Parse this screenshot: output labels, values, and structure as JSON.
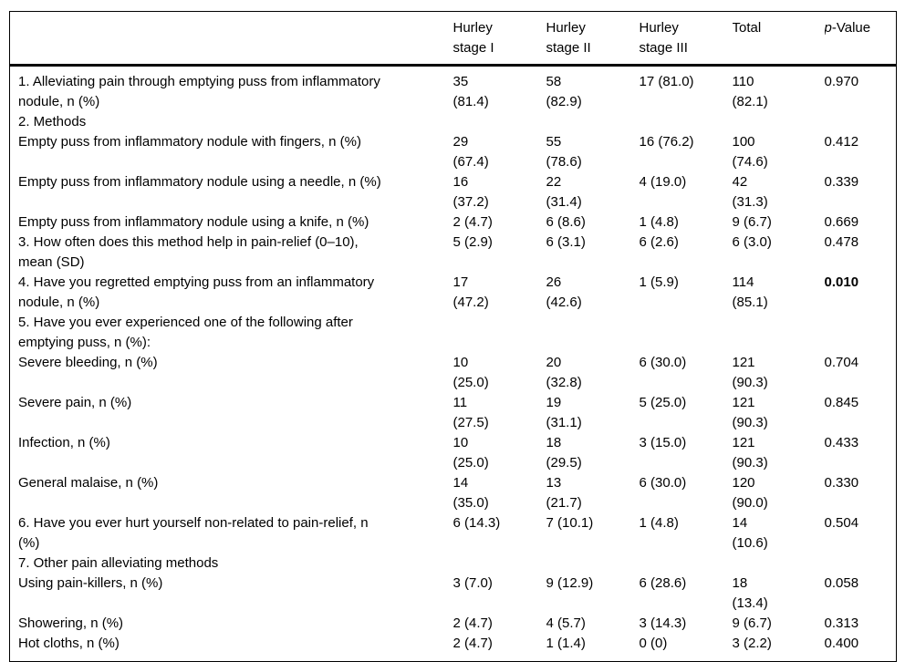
{
  "style": {
    "background_color": "#ffffff",
    "text_color": "#000000",
    "rule_color": "#000000"
  },
  "table": {
    "column_headers": {
      "label": "",
      "stage1": "Hurley\nstage I",
      "stage2": "Hurley\nstage II",
      "stage3": "Hurley\nstage III",
      "total": "Total",
      "p_italic": "p",
      "p_rest": "-Value"
    },
    "rows": [
      {
        "label": "1. Alleviating pain through emptying puss from inflammatory\nnodule, n (%)",
        "cells": [
          "35\n(81.4)",
          "58\n(82.9)",
          "17 (81.0)",
          "110\n(82.1)",
          "0.970"
        ],
        "p_bold": false
      },
      {
        "label": "2. Methods",
        "cells": [
          "",
          "",
          "",
          "",
          ""
        ],
        "p_bold": false
      },
      {
        "label": "Empty puss from inflammatory nodule with fingers, n (%)",
        "cells": [
          "29\n(67.4)",
          "55\n(78.6)",
          "16 (76.2)",
          "100\n(74.6)",
          "0.412"
        ],
        "p_bold": false
      },
      {
        "label": "Empty puss from inflammatory nodule using a needle, n (%)",
        "cells": [
          "16\n(37.2)",
          "22\n(31.4)",
          "4 (19.0)",
          "42\n(31.3)",
          "0.339"
        ],
        "p_bold": false
      },
      {
        "label": "Empty puss from inflammatory nodule using a knife, n (%)",
        "cells": [
          "2 (4.7)",
          "6 (8.6)",
          "1 (4.8)",
          "9 (6.7)",
          "0.669"
        ],
        "p_bold": false
      },
      {
        "label": "3. How often does this method help in pain-relief (0–10),\nmean (SD)",
        "cells": [
          "5 (2.9)",
          "6 (3.1)",
          "6 (2.6)",
          "6 (3.0)",
          "0.478"
        ],
        "p_bold": false
      },
      {
        "label": "4. Have you regretted emptying puss from an inflammatory\nnodule, n (%)",
        "cells": [
          "17\n(47.2)",
          "26\n(42.6)",
          "1 (5.9)",
          "114\n(85.1)",
          "0.010"
        ],
        "p_bold": true
      },
      {
        "label": "5. Have you ever experienced one of the following after\nemptying puss, n (%):",
        "cells": [
          "",
          "",
          "",
          "",
          ""
        ],
        "p_bold": false
      },
      {
        "label": "Severe bleeding, n (%)",
        "cells": [
          "10\n(25.0)",
          "20\n(32.8)",
          "6 (30.0)",
          "121\n(90.3)",
          "0.704"
        ],
        "p_bold": false
      },
      {
        "label": "Severe pain, n (%)",
        "cells": [
          "11\n(27.5)",
          "19\n(31.1)",
          "5 (25.0)",
          "121\n(90.3)",
          "0.845"
        ],
        "p_bold": false
      },
      {
        "label": "Infection, n (%)",
        "cells": [
          "10\n(25.0)",
          "18\n(29.5)",
          "3 (15.0)",
          "121\n(90.3)",
          "0.433"
        ],
        "p_bold": false
      },
      {
        "label": "General malaise, n (%)",
        "cells": [
          "14\n(35.0)",
          "13\n(21.7)",
          "6 (30.0)",
          "120\n(90.0)",
          "0.330"
        ],
        "p_bold": false
      },
      {
        "label": "6. Have you ever hurt yourself non-related to pain-relief, n\n(%)",
        "cells": [
          "6 (14.3)",
          "7 (10.1)",
          "1 (4.8)",
          "14\n(10.6)",
          "0.504"
        ],
        "p_bold": false
      },
      {
        "label": "7. Other pain alleviating methods",
        "cells": [
          "",
          "",
          "",
          "",
          ""
        ],
        "p_bold": false
      },
      {
        "label": "Using pain-killers, n (%)",
        "cells": [
          "3 (7.0)",
          "9 (12.9)",
          "6 (28.6)",
          "18\n(13.4)",
          "0.058"
        ],
        "p_bold": false
      },
      {
        "label": "Showering, n (%)",
        "cells": [
          "2 (4.7)",
          "4 (5.7)",
          "3 (14.3)",
          "9 (6.7)",
          "0.313"
        ],
        "p_bold": false
      },
      {
        "label": "Hot cloths, n (%)",
        "cells": [
          "2 (4.7)",
          "1 (1.4)",
          "0 (0)",
          "3 (2.2)",
          "0.400"
        ],
        "p_bold": false
      }
    ]
  }
}
